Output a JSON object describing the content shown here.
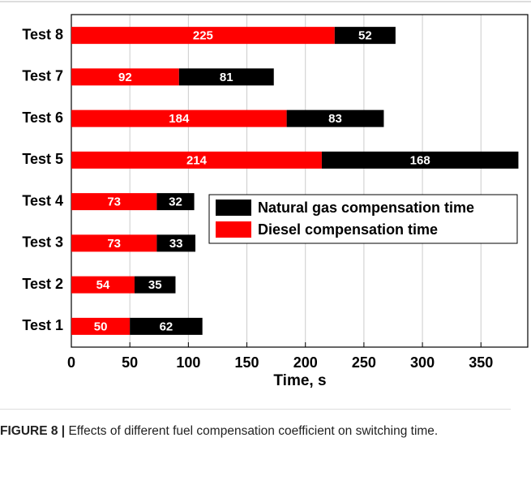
{
  "chart_data": {
    "type": "stacked_barh",
    "categories": [
      "Test 1",
      "Test 2",
      "Test 3",
      "Test 4",
      "Test 5",
      "Test 6",
      "Test 7",
      "Test 8"
    ],
    "series": [
      {
        "name": "Diesel compensation time",
        "color": "#ff0000",
        "values": [
          50,
          54,
          73,
          73,
          214,
          184,
          92,
          225
        ]
      },
      {
        "name": "Natural gas compensation time",
        "color": "#000000",
        "values": [
          62,
          35,
          33,
          32,
          168,
          83,
          81,
          52
        ]
      }
    ],
    "xlabel": "Time, s",
    "xlim": [
      0,
      390
    ],
    "xticks": [
      0,
      50,
      100,
      150,
      200,
      250,
      300,
      350
    ],
    "grid": true
  },
  "caption": {
    "label": "FIGURE 8 |",
    "text": "Effects of different fuel compensation coefficient on switching time."
  }
}
